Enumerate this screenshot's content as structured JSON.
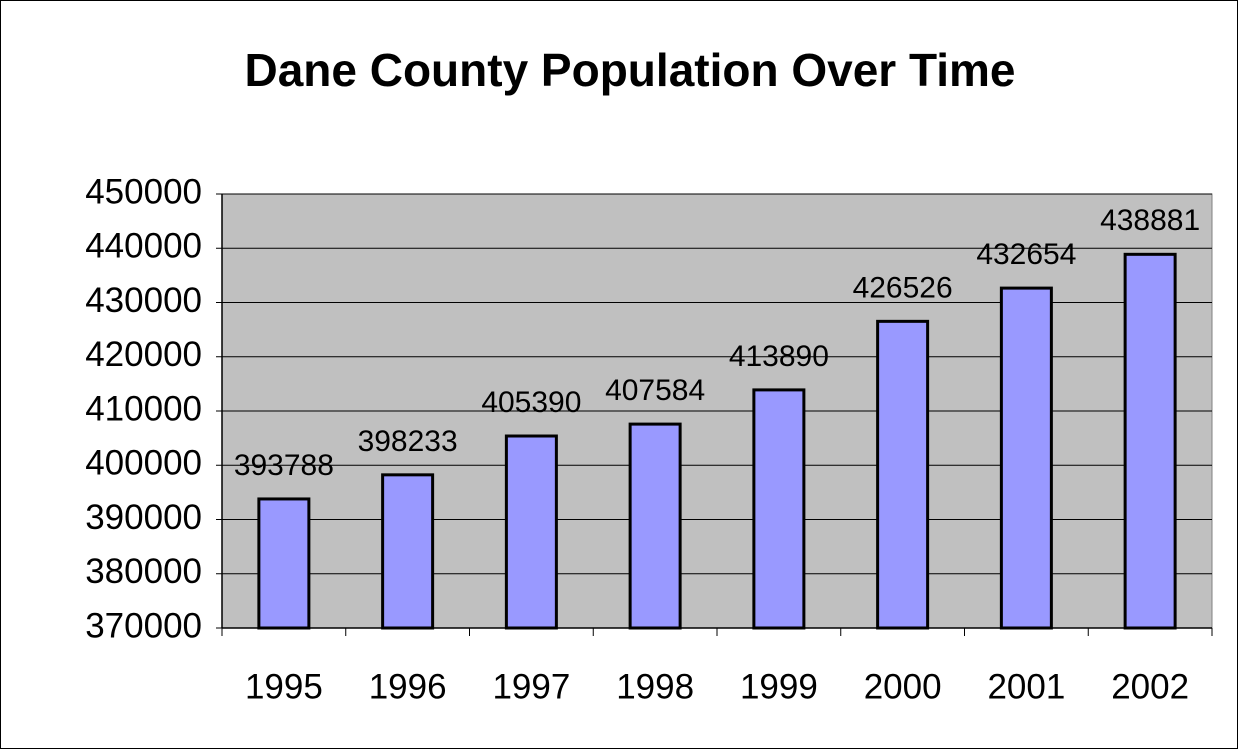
{
  "chart_data": {
    "type": "bar",
    "title": "Dane County Population Over Time",
    "categories": [
      "1995",
      "1996",
      "1997",
      "1998",
      "1999",
      "2000",
      "2001",
      "2002"
    ],
    "values": [
      393788,
      398233,
      405390,
      407584,
      413890,
      426526,
      432654,
      438881
    ],
    "color": "#9999ff",
    "ylim": [
      370000,
      450000
    ],
    "yticks": [
      370000,
      380000,
      390000,
      400000,
      410000,
      420000,
      430000,
      440000,
      450000
    ],
    "grid": true,
    "plot_background": "#c0c0c0"
  }
}
